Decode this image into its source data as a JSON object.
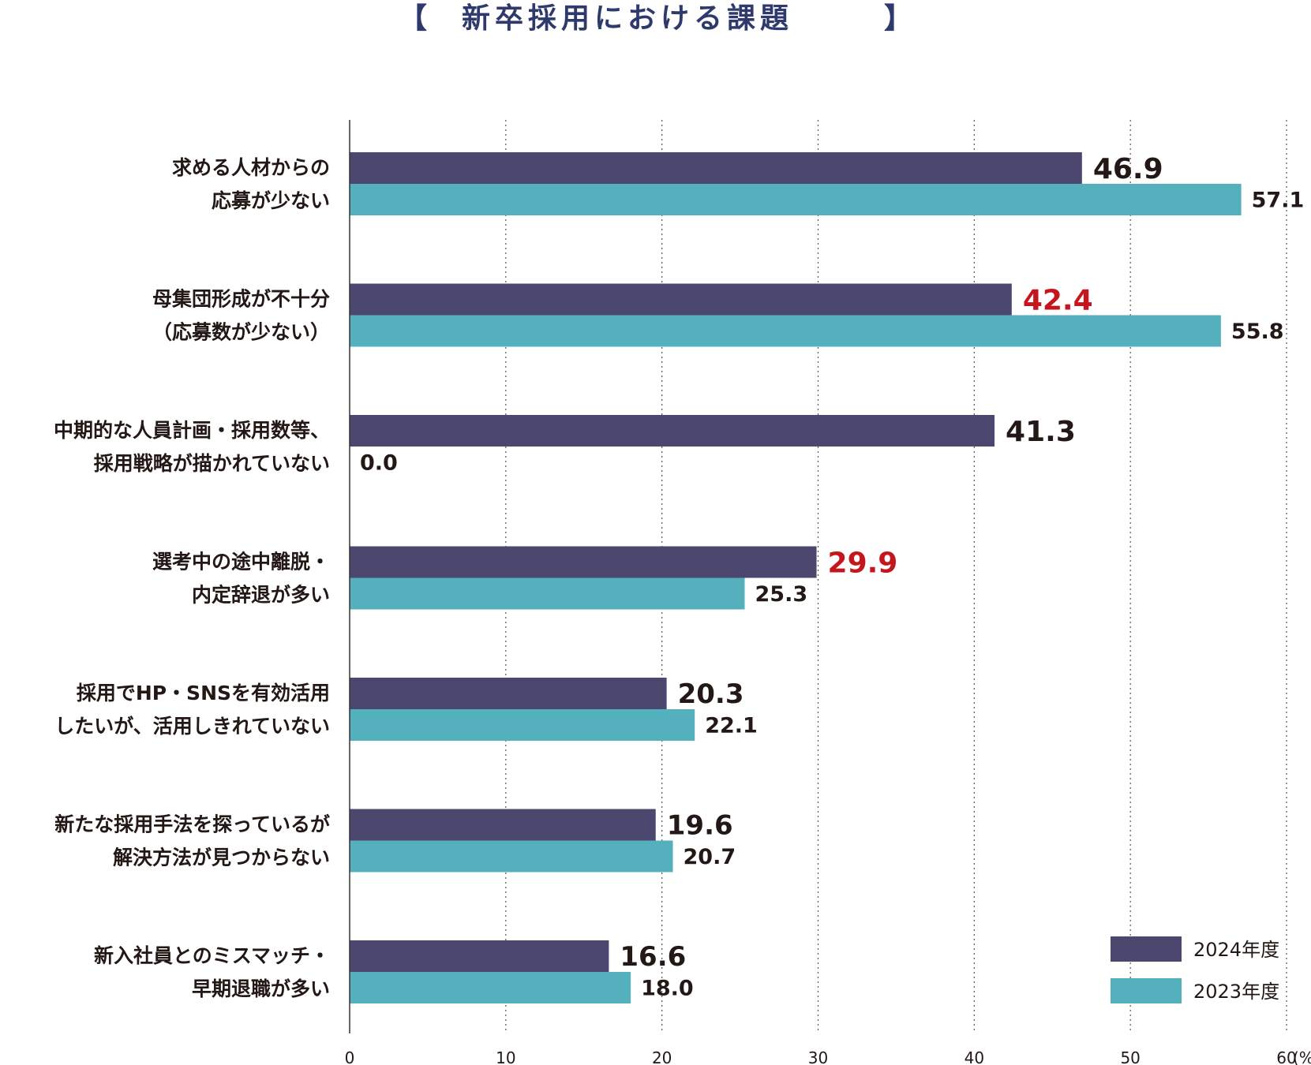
{
  "chart_data": {
    "type": "bar",
    "orientation": "horizontal",
    "title_open": "【",
    "title": "新卒採用における課題",
    "title_close": "】",
    "xlim": [
      0,
      60
    ],
    "xticks": [
      0,
      10,
      20,
      30,
      40,
      50,
      60
    ],
    "xticklabels": [
      "0",
      "10",
      "20",
      "30",
      "40",
      "50",
      "60"
    ],
    "unit": "(%)",
    "grid": "vertical-dotted",
    "legend_position": "bottom-right",
    "categories": [
      [
        "求める人材からの",
        "応募が少ない"
      ],
      [
        "母集団形成が不十分",
        "（応募数が少ない）"
      ],
      [
        "中期的な人員計画・採用数等、",
        "採用戦略が描かれていない"
      ],
      [
        "選考中の途中離脱・",
        "内定辞退が多い"
      ],
      [
        "採用でHP・SNSを有効活用",
        "したいが、活用しきれていない"
      ],
      [
        "新たな採用手法を探っているが",
        "解決方法が見つからない"
      ],
      [
        "新入社員とのミスマッチ・",
        "早期退職が多い"
      ]
    ],
    "series": [
      {
        "name": "2024年度",
        "color": "#4b476e",
        "values": [
          46.9,
          42.4,
          41.3,
          29.9,
          20.3,
          19.6,
          16.6
        ],
        "labels": [
          "46.9",
          "42.4",
          "41.3",
          "29.9",
          "20.3",
          "19.6",
          "16.6"
        ],
        "highlight": [
          false,
          true,
          false,
          true,
          false,
          false,
          false
        ]
      },
      {
        "name": "2023年度",
        "color": "#55b0be",
        "values": [
          57.1,
          55.8,
          0.0,
          25.3,
          22.1,
          20.7,
          18.0
        ],
        "labels": [
          "57.1",
          "55.8",
          "0.0",
          "25.3",
          "22.1",
          "20.7",
          "18.0"
        ],
        "highlight": [
          false,
          false,
          false,
          false,
          false,
          false,
          false
        ]
      }
    ],
    "highlight_color": "#c4161c"
  }
}
